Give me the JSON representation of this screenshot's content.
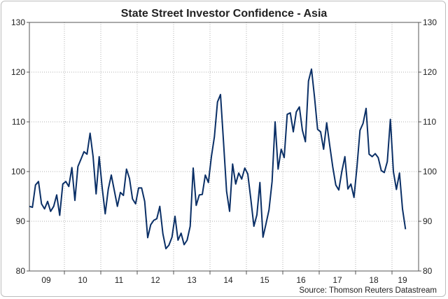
{
  "chart_data": {
    "type": "line",
    "title": "State Street Investor Confidence - Asia",
    "source": "Source: Thomson Reuters Datastream",
    "xlabel": "",
    "ylabel": "",
    "ylim": [
      80,
      130
    ],
    "yticks": [
      80,
      90,
      100,
      110,
      120,
      130
    ],
    "xticks": [
      "09",
      "10",
      "11",
      "12",
      "13",
      "14",
      "15",
      "16",
      "17",
      "18",
      "19"
    ],
    "grid": true,
    "frequency": "monthly",
    "start": "2009-01",
    "line_color": "#0a2f66",
    "series": [
      {
        "name": "Investor Confidence - Asia",
        "values": [
          93,
          92.8,
          97.3,
          98,
          93.5,
          92.5,
          94,
          92,
          93,
          95.3,
          91.2,
          97.5,
          98,
          97,
          100.8,
          94.2,
          101,
          102.5,
          104,
          103.5,
          107.7,
          103,
          95.5,
          103,
          96.7,
          91.5,
          96.5,
          99.3,
          96.2,
          93,
          95.8,
          95.2,
          100.5,
          98.6,
          94.5,
          93.5,
          96.7,
          96.7,
          94,
          86.7,
          89.3,
          90.2,
          90.5,
          93,
          87.5,
          84.5,
          85.2,
          86.8,
          91,
          86.2,
          87.6,
          85.3,
          86.2,
          89,
          100.7,
          93.2,
          95.3,
          95.4,
          99.3,
          97.8,
          103,
          107,
          114,
          115.5,
          106,
          96,
          92,
          101.5,
          97.5,
          99.7,
          98.5,
          100.7,
          99.5,
          94.5,
          89,
          91.3,
          97.8,
          86.8,
          89.5,
          92.3,
          98,
          110,
          100.5,
          104.5,
          102.8,
          111.5,
          111.8,
          108,
          112,
          113,
          108.3,
          106,
          118.2,
          120.6,
          115,
          108.5,
          108,
          104.5,
          109.8,
          105.3,
          101,
          97.3,
          96.3,
          100,
          103,
          96.5,
          97.5,
          94.8,
          101,
          108.3,
          109.7,
          112.7,
          103.5,
          103,
          103.6,
          102.8,
          100.2,
          99.8,
          102,
          110.5,
          100,
          96.4,
          99.7,
          92.5,
          88.4
        ]
      }
    ]
  }
}
